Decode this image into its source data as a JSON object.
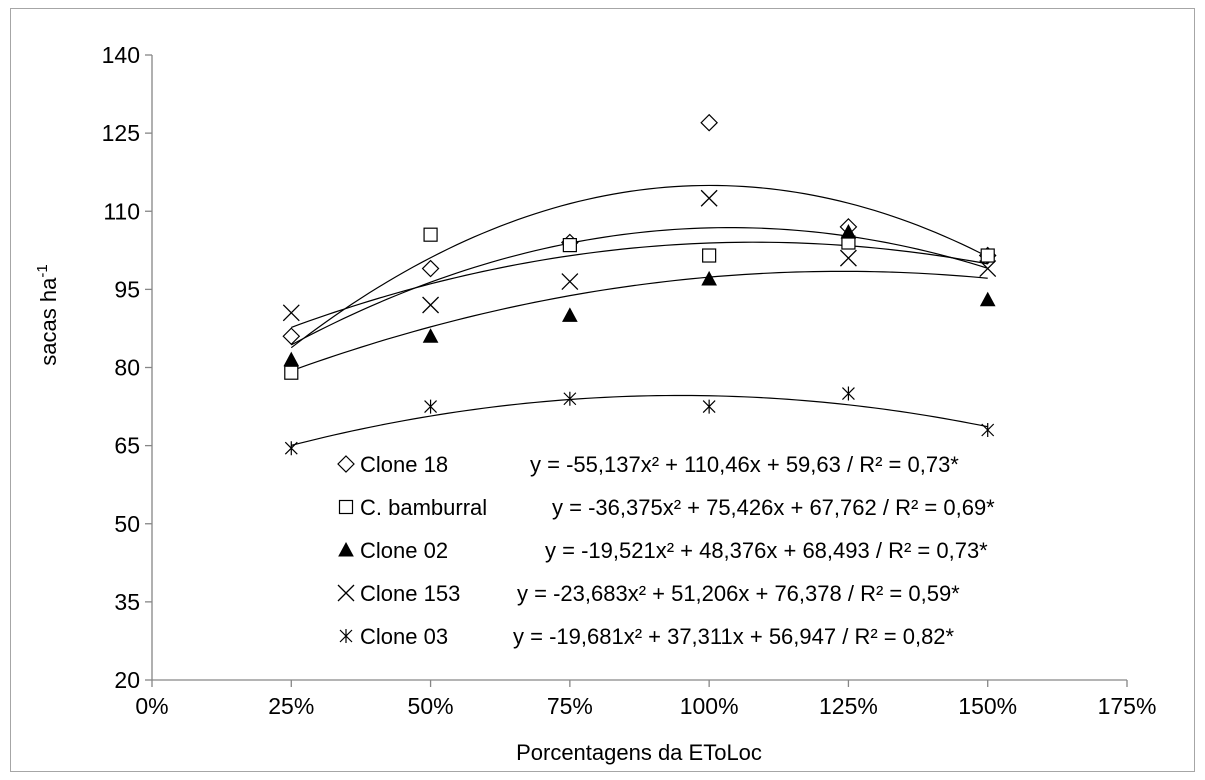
{
  "chart_data": {
    "type": "scatter",
    "xlabel": "Porcentagens da EToLoc",
    "ylabel": "sacas ha",
    "ylabel_superscript": "-1",
    "xlim": [
      0,
      1.75
    ],
    "ylim": [
      20,
      140
    ],
    "x_ticks": [
      0,
      0.25,
      0.5,
      0.75,
      1.0,
      1.25,
      1.5,
      1.75
    ],
    "x_tick_labels": [
      "0%",
      "25%",
      "50%",
      "75%",
      "100%",
      "125%",
      "150%",
      "175%"
    ],
    "y_ticks": [
      20,
      35,
      50,
      65,
      80,
      95,
      110,
      125,
      140
    ],
    "y_tick_labels": [
      "20",
      "35",
      "50",
      "65",
      "80",
      "95",
      "110",
      "125",
      "140"
    ],
    "grid": false,
    "x": [
      0.25,
      0.5,
      0.75,
      1.0,
      1.25,
      1.5
    ],
    "series": [
      {
        "name": "Clone 18",
        "marker": "diamond-open",
        "values": [
          86.0,
          99.0,
          104.0,
          127.0,
          107.0,
          101.5
        ],
        "equation": "y = -55,137x² + 110,46x + 59,63 / R² = 0,73*",
        "coef": [
          -55.137,
          110.46,
          59.63
        ]
      },
      {
        "name": "C. bamburral",
        "marker": "square-open",
        "values": [
          79.0,
          105.5,
          103.5,
          101.5,
          104.0,
          101.5
        ],
        "equation": "y = -36,375x² + 75,426x + 67,762 / R² = 0,69*",
        "coef": [
          -36.375,
          75.426,
          67.762
        ]
      },
      {
        "name": "Clone 02",
        "marker": "triangle-filled",
        "values": [
          81.5,
          86.0,
          90.0,
          97.0,
          106.0,
          93.0
        ],
        "equation": "y = -19,521x² + 48,376x + 68,493 / R² = 0,73*",
        "coef": [
          -19.521,
          48.376,
          68.493
        ]
      },
      {
        "name": "Clone 153",
        "marker": "x",
        "values": [
          90.5,
          92.0,
          96.5,
          112.5,
          101.0,
          99.0
        ],
        "equation": "y = -23,683x² + 51,206x + 76,378 / R² = 0,59*",
        "coef": [
          -23.683,
          51.206,
          76.378
        ]
      },
      {
        "name": "Clone 03",
        "marker": "asterisk",
        "values": [
          64.5,
          72.5,
          74.0,
          72.5,
          75.0,
          68.0
        ],
        "equation": "y = -19,681x² + 37,311x + 56,947 / R² = 0,82*",
        "coef": [
          -19.681,
          37.311,
          56.947
        ]
      }
    ]
  }
}
